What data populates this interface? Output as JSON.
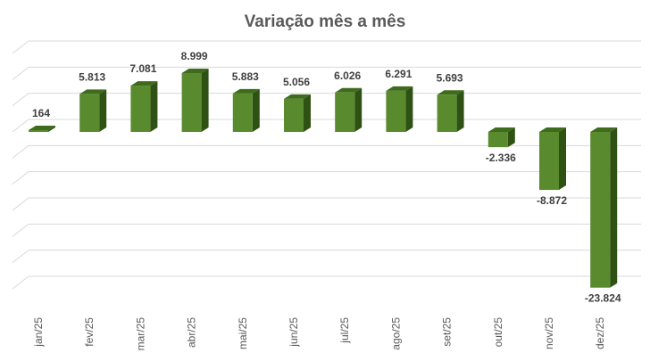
{
  "chart_data": {
    "type": "bar",
    "title": "Variação mês a mês",
    "categories": [
      "jan/25",
      "fev/25",
      "mar/25",
      "abr/25",
      "mai/25",
      "jun/25",
      "jul/25",
      "ago/25",
      "set/25",
      "out/25",
      "nov/25",
      "dez/25"
    ],
    "values": [
      164,
      5813,
      7081,
      8999,
      5883,
      5056,
      6026,
      6291,
      5693,
      -2336,
      -8872,
      -23824
    ],
    "data_labels": [
      "164",
      "5.813",
      "7.081",
      "8.999",
      "5.883",
      "5.056",
      "6.026",
      "6.291",
      "5.693",
      "-2.336",
      "-8.872",
      "-23.824"
    ],
    "ylim": [
      -24000,
      12000
    ],
    "grid": true,
    "legend": "none",
    "bar_color": "#5a8a2e",
    "bar_top_color": "#3e6b1c",
    "bar_side_color": "#2f5214"
  }
}
